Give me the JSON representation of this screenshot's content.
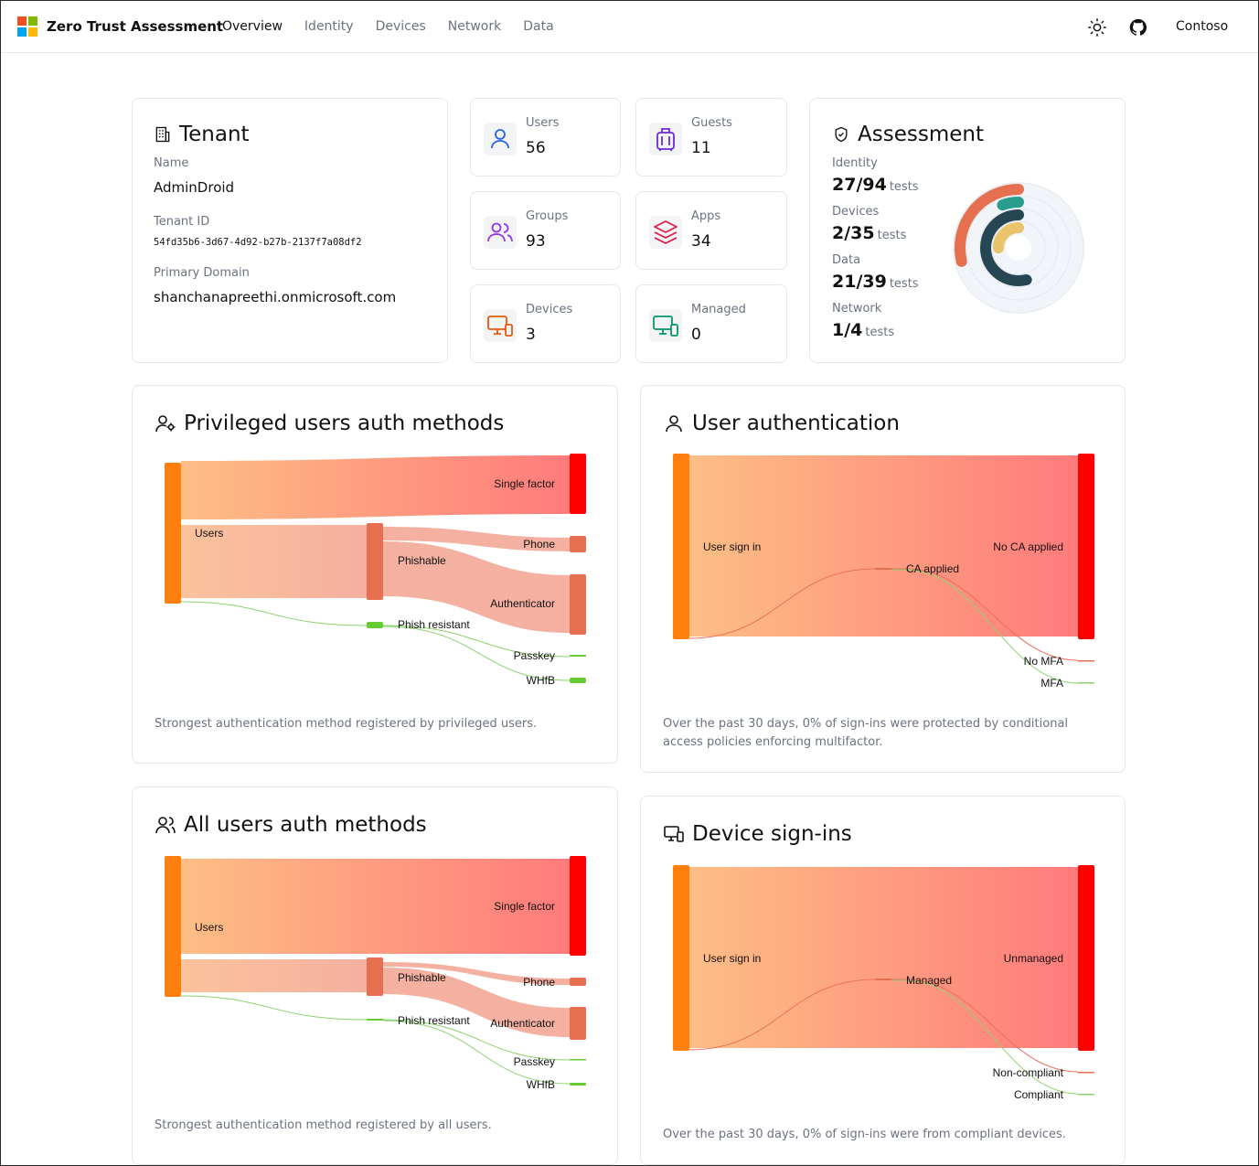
{
  "header": {
    "brand": "Zero Trust Assessment",
    "nav": [
      "Overview",
      "Identity",
      "Devices",
      "Network",
      "Data"
    ],
    "active_nav": "Overview",
    "tenant_menu": "Contoso"
  },
  "tenant": {
    "title": "Tenant",
    "name_label": "Name",
    "name": "AdminDroid",
    "id_label": "Tenant ID",
    "id": "54fd35b6-3d67-4d92-b27b-2137f7a08df2",
    "domain_label": "Primary Domain",
    "domain": "shanchanapreethi.onmicrosoft.com"
  },
  "stats": {
    "users": {
      "label": "Users",
      "value": "56"
    },
    "guests": {
      "label": "Guests",
      "value": "11"
    },
    "groups": {
      "label": "Groups",
      "value": "93"
    },
    "apps": {
      "label": "Apps",
      "value": "34"
    },
    "devices": {
      "label": "Devices",
      "value": "3"
    },
    "managed": {
      "label": "Managed",
      "value": "0"
    }
  },
  "assessment": {
    "title": "Assessment",
    "unit": "tests",
    "items": [
      {
        "label": "Identity",
        "value": "27/94",
        "passed": 27,
        "total": 94,
        "color": "#e56f4f"
      },
      {
        "label": "Devices",
        "value": "2/35",
        "passed": 2,
        "total": 35,
        "color": "#2a9d8f"
      },
      {
        "label": "Data",
        "value": "21/39",
        "passed": 21,
        "total": 39,
        "color": "#264653"
      },
      {
        "label": "Network",
        "value": "1/4",
        "passed": 1,
        "total": 4,
        "color": "#e9c46a"
      }
    ]
  },
  "priv_auth": {
    "title": "Privileged users auth methods",
    "nodes": {
      "users": "Users",
      "single": "Single factor",
      "phishable": "Phishable",
      "phone": "Phone",
      "authenticator": "Authenticator",
      "phish_resistant": "Phish resistant",
      "passkey": "Passkey",
      "whfb": "WHfB"
    },
    "caption": "Strongest authentication method registered by privileged users."
  },
  "user_auth": {
    "title": "User authentication",
    "nodes": {
      "signin": "User sign in",
      "no_ca": "No CA applied",
      "ca": "CA applied",
      "no_mfa": "No MFA",
      "mfa": "MFA"
    },
    "caption": "Over the past 30 days, 0% of sign-ins were protected by conditional access policies enforcing multifactor."
  },
  "all_auth": {
    "title": "All users auth methods",
    "nodes": {
      "users": "Users",
      "single": "Single factor",
      "phishable": "Phishable",
      "phone": "Phone",
      "authenticator": "Authenticator",
      "phish_resistant": "Phish resistant",
      "passkey": "Passkey",
      "whfb": "WHfB"
    },
    "caption": "Strongest authentication method registered by all users."
  },
  "device_signins": {
    "title": "Device sign-ins",
    "nodes": {
      "signin": "User sign in",
      "unmanaged": "Unmanaged",
      "managed": "Managed",
      "noncompliant": "Non-compliant",
      "compliant": "Compliant"
    },
    "caption": "Over the past 30 days, 0% of sign-ins were from compliant devices."
  }
}
